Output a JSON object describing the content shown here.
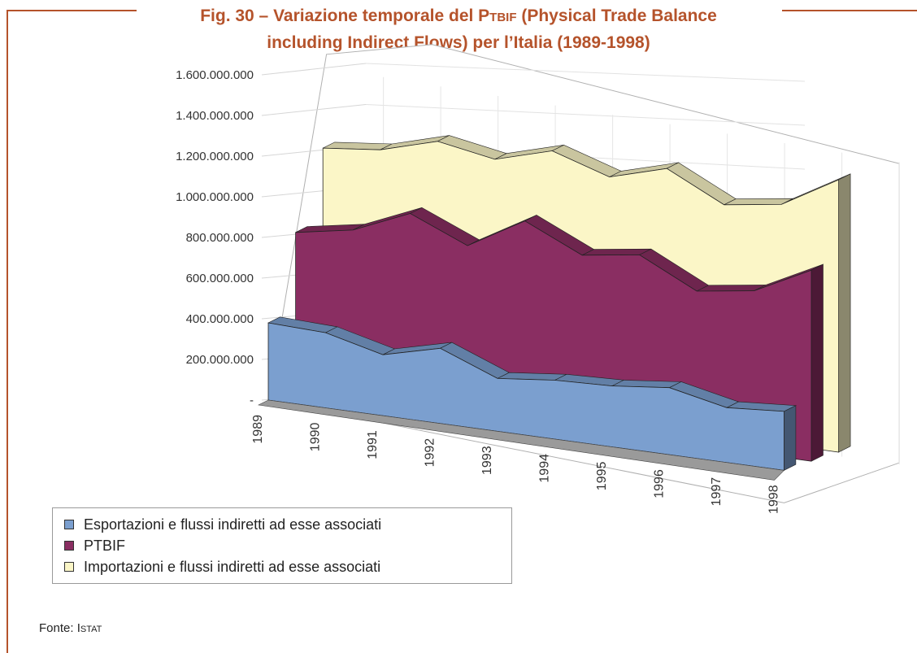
{
  "title": {
    "line1_pre": "Fig. 30 – Variazione temporale del P",
    "line1_sc": "TBIF",
    "line1_post": " (Physical Trade Balance",
    "line2": "including Indirect Flows) per l’Italia (1989-1998)"
  },
  "source": {
    "label": "Fonte: I",
    "sc": "STAT"
  },
  "chart_data": {
    "type": "area",
    "view": "3d",
    "categories": [
      "1989",
      "1990",
      "1991",
      "1992",
      "1993",
      "1994",
      "1995",
      "1996",
      "1997",
      "1998"
    ],
    "y_ticks": [
      "-",
      "200.000.000",
      "400.000.000",
      "600.000.000",
      "800.000.000",
      "1.000.000.000",
      "1.200.000.000",
      "1.400.000.000",
      "1.600.000.000"
    ],
    "ylim": [
      0,
      1600000000
    ],
    "grid": true,
    "legend_position": "bottom-left",
    "series": [
      {
        "name": "Esportazioni e flussi indiretti ad esse associati",
        "color": "#7b9fcf",
        "values": [
          380000000,
          370000000,
          300000000,
          370000000,
          260000000,
          290000000,
          300000000,
          330000000,
          270000000,
          290000000
        ]
      },
      {
        "name": "PTBIF",
        "color": "#8a2e62",
        "values": [
          780000000,
          830000000,
          950000000,
          830000000,
          990000000,
          860000000,
          900000000,
          760000000,
          800000000,
          940000000
        ]
      },
      {
        "name": "Importazioni e flussi indiretti ad esse associati",
        "color": "#fbf6c7",
        "values": [
          1150000000,
          1180000000,
          1260000000,
          1210000000,
          1290000000,
          1200000000,
          1280000000,
          1140000000,
          1180000000,
          1340000000
        ]
      }
    ]
  }
}
